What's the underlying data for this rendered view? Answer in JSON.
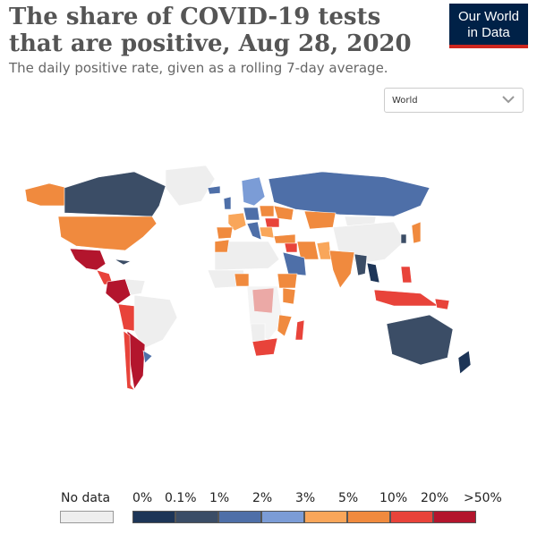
{
  "header": {
    "title": "The share of COVID-19 tests that are positive, Aug 28, 2020",
    "subtitle": "The daily positive rate, given as a rolling 7-day average."
  },
  "logo": {
    "line1": "Our World",
    "line2": "in Data"
  },
  "region_select": {
    "value": "World"
  },
  "legend": {
    "no_data_label": "No data",
    "tick_labels": [
      "0%",
      "0.1%",
      "1%",
      "2%",
      "3%",
      "5%",
      "10%",
      "20%",
      ">50%"
    ],
    "colors": [
      "#1d3557",
      "#3b4d66",
      "#4e6fa8",
      "#7b9cd6",
      "#f9a65a",
      "#f08a3e",
      "#e8433a",
      "#b3152d"
    ],
    "no_data_color": "#eeeeee"
  },
  "colors": {
    "accent": "#002147",
    "logo_underline": "#ce261e"
  }
}
